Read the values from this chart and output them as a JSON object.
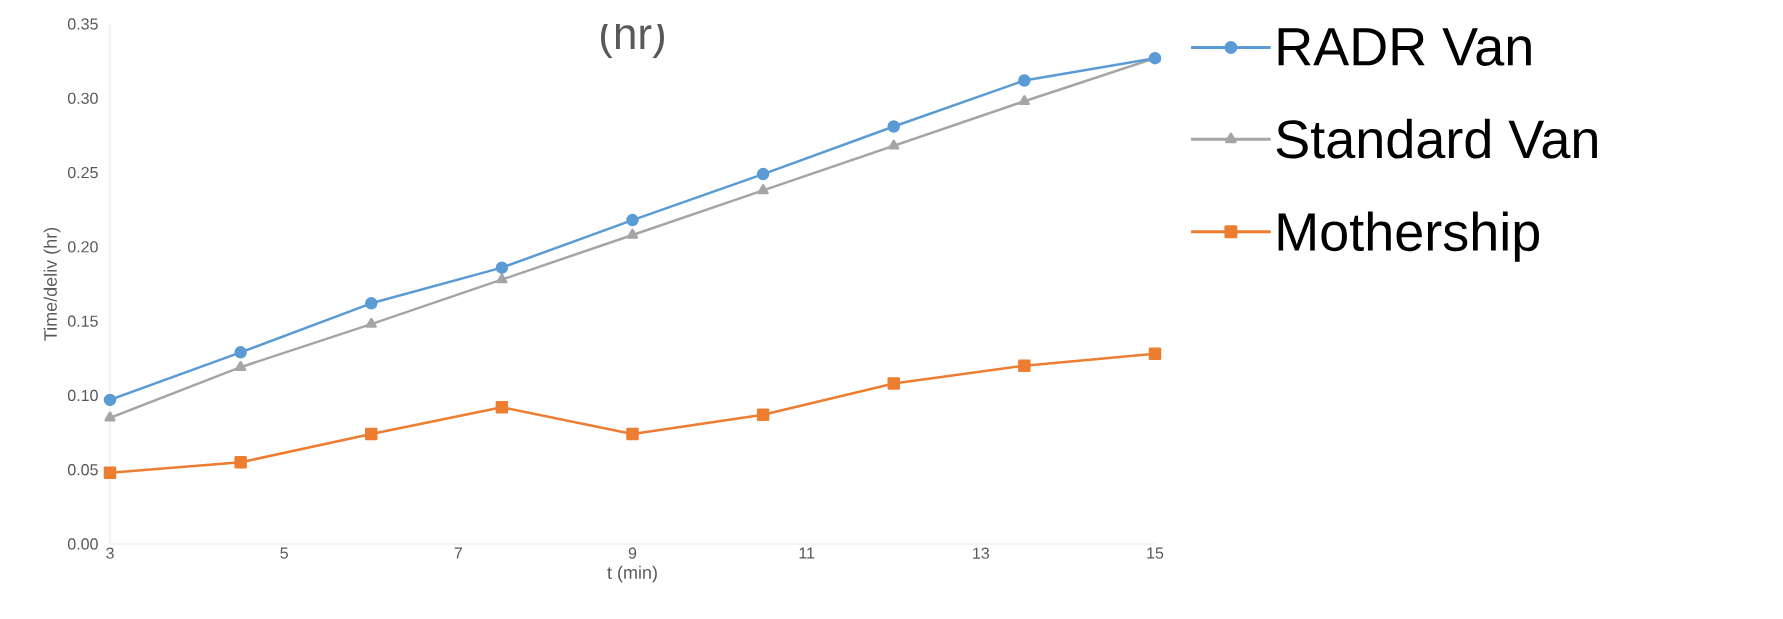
{
  "chart_data": {
    "type": "line",
    "title": "(hr)",
    "xlabel": "t (min)",
    "ylabel": "Time/deliv (hr)",
    "x": [
      3,
      4.5,
      6,
      7.5,
      9,
      10.5,
      12,
      13.5,
      15
    ],
    "xlim": [
      3,
      15
    ],
    "xticks": [
      3,
      5,
      7,
      9,
      11,
      13,
      15
    ],
    "ylim": [
      0,
      0.35
    ],
    "yticks": [
      {
        "value": 0,
        "label": "0.00"
      },
      {
        "value": 0.05,
        "label": "0.05"
      },
      {
        "value": 0.1,
        "label": "0.10"
      },
      {
        "value": 0.15,
        "label": "0.15"
      },
      {
        "value": 0.2,
        "label": "0.20"
      },
      {
        "value": 0.25,
        "label": "0.25"
      },
      {
        "value": 0.3,
        "label": "0.30"
      },
      {
        "value": 0.35,
        "label": "0.35"
      }
    ],
    "grid": false,
    "legend": "right",
    "line_style": "solid",
    "series": [
      {
        "name": "RADR Van",
        "color": "#5b9bd5",
        "marker": "circle",
        "values": [
          0.097,
          0.129,
          0.162,
          0.186,
          0.218,
          0.249,
          0.281,
          0.312,
          0.327
        ]
      },
      {
        "name": "Standard Van",
        "color": "#a5a5a5",
        "marker": "triangle",
        "values": [
          0.085,
          0.119,
          0.148,
          0.178,
          0.208,
          0.238,
          0.268,
          0.298,
          0.327
        ]
      },
      {
        "name": "Mothership",
        "color": "#ed7d31",
        "marker": "square",
        "values": [
          0.048,
          0.055,
          0.074,
          0.092,
          0.074,
          0.087,
          0.108,
          0.12,
          0.128
        ]
      }
    ]
  }
}
